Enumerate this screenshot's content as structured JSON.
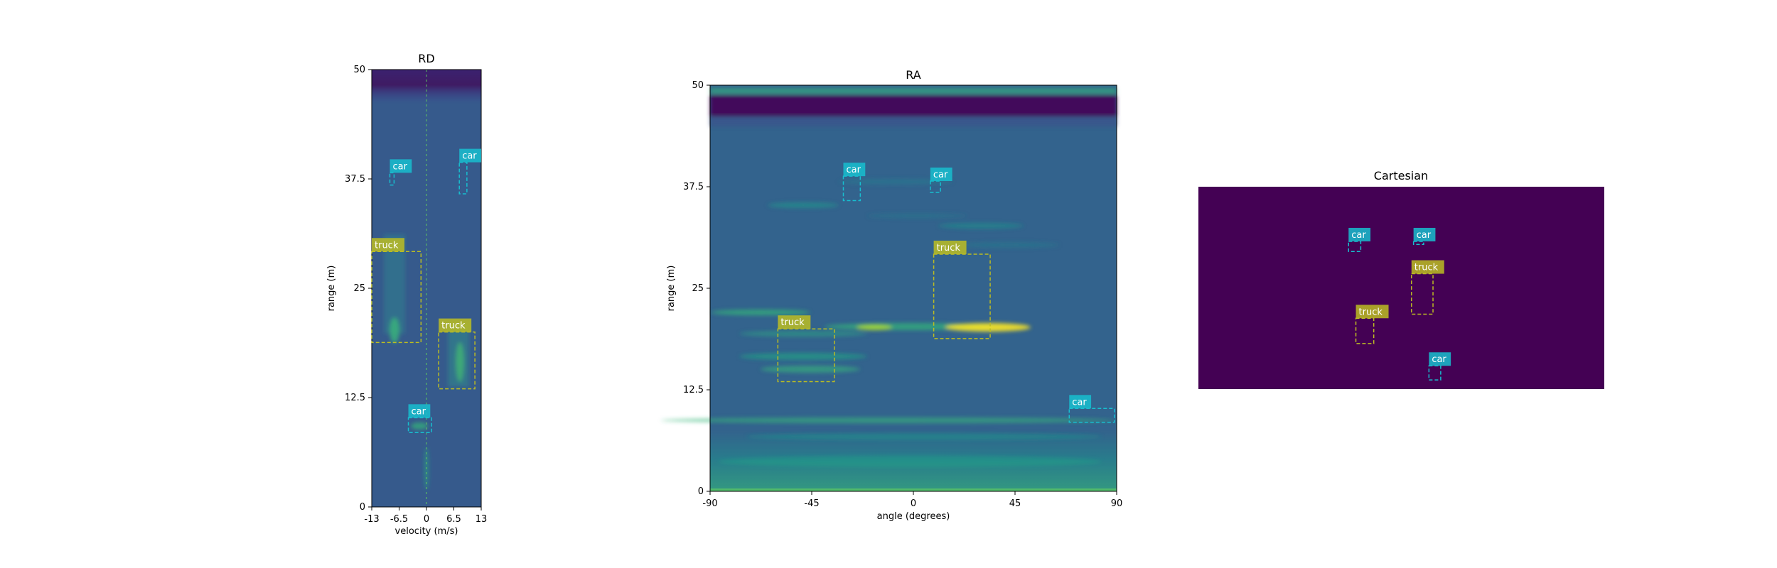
{
  "chart_data": [
    {
      "type": "heatmap",
      "title": "RD",
      "xlabel": "velocity (m/s)",
      "ylabel": "range (m)",
      "xlim": [
        -13,
        13
      ],
      "ylim": [
        0,
        50
      ],
      "xticks": [
        -13,
        -6.5,
        0,
        6.5,
        13
      ],
      "xtick_labels": [
        "-13",
        "-6.5",
        "0",
        "6.5",
        "13"
      ],
      "yticks": [
        0,
        12.5,
        25,
        37.5,
        50
      ],
      "ytick_labels": [
        "0",
        "12.5",
        "25",
        "37.5",
        "50"
      ],
      "colormap": "viridis",
      "grid": false,
      "boxes": [
        {
          "label": "car",
          "x0": -8.7,
          "x1": -7.7,
          "y0": 36.8,
          "y1": 38.2,
          "color": "#17becf"
        },
        {
          "label": "car",
          "x0": 7.8,
          "x1": 9.6,
          "y0": 35.8,
          "y1": 39.4,
          "color": "#17becf"
        },
        {
          "label": "truck",
          "x0": -13,
          "x1": -1.3,
          "y0": 18.8,
          "y1": 29.2,
          "color": "#bcbd22"
        },
        {
          "label": "truck",
          "x0": 2.9,
          "x1": 11.5,
          "y0": 13.5,
          "y1": 20.0,
          "color": "#bcbd22"
        },
        {
          "label": "car",
          "x0": -4.3,
          "x1": 1.2,
          "y0": 8.5,
          "y1": 10.2,
          "color": "#17becf"
        }
      ]
    },
    {
      "type": "heatmap",
      "title": "RA",
      "xlabel": "angle (degrees)",
      "ylabel": "range (m)",
      "xlim": [
        -90,
        90
      ],
      "ylim": [
        0,
        50
      ],
      "xticks": [
        -90,
        -45,
        0,
        45,
        90
      ],
      "xtick_labels": [
        "-90",
        "-45",
        "0",
        "45",
        "90"
      ],
      "yticks": [
        0,
        12.5,
        25,
        37.5,
        50
      ],
      "ytick_labels": [
        "0",
        "12.5",
        "25",
        "37.5",
        "50"
      ],
      "colormap": "viridis",
      "grid": false,
      "boxes": [
        {
          "label": "car",
          "x0": -31,
          "x1": -23.5,
          "y0": 35.8,
          "y1": 38.8,
          "color": "#17becf"
        },
        {
          "label": "car",
          "x0": 7.5,
          "x1": 12,
          "y0": 36.8,
          "y1": 38.2,
          "color": "#17becf"
        },
        {
          "label": "truck",
          "x0": 9,
          "x1": 34,
          "y0": 18.8,
          "y1": 29.2,
          "color": "#bcbd22"
        },
        {
          "label": "truck",
          "x0": -60,
          "x1": -35,
          "y0": 13.5,
          "y1": 20.0,
          "color": "#bcbd22"
        },
        {
          "label": "car",
          "x0": 69,
          "x1": 89,
          "y0": 8.5,
          "y1": 10.2,
          "color": "#17becf"
        }
      ]
    },
    {
      "type": "heatmap",
      "title": "Cartesian",
      "colormap": "viridis",
      "background_color": "#440154",
      "grid": false,
      "axes_visible": false,
      "boxes": [
        {
          "label": "car",
          "fx0": 0.37,
          "fx1": 0.4,
          "fy0": 0.27,
          "fy1": 0.32,
          "color": "#17becf"
        },
        {
          "label": "car",
          "fx0": 0.53,
          "fx1": 0.555,
          "fy0": 0.27,
          "fy1": 0.285,
          "color": "#17becf"
        },
        {
          "label": "truck",
          "fx0": 0.525,
          "fx1": 0.578,
          "fy0": 0.43,
          "fy1": 0.63,
          "color": "#bcbd22"
        },
        {
          "label": "truck",
          "fx0": 0.388,
          "fx1": 0.432,
          "fy0": 0.65,
          "fy1": 0.775,
          "color": "#bcbd22"
        },
        {
          "label": "car",
          "fx0": 0.568,
          "fx1": 0.597,
          "fy0": 0.885,
          "fy1": 0.955,
          "color": "#17becf"
        }
      ]
    }
  ]
}
